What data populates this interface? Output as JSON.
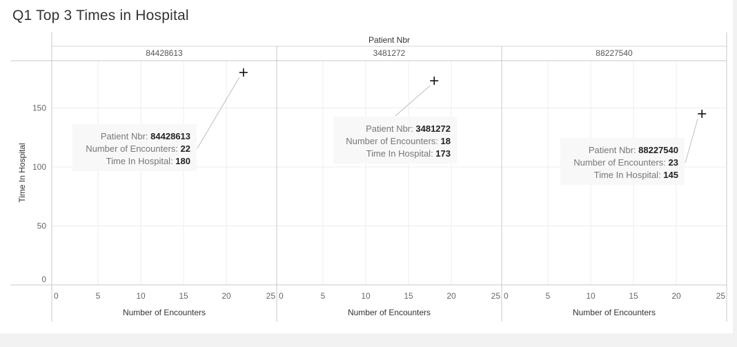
{
  "title": "Q1 Top 3 Times in Hospital",
  "chart_data": {
    "type": "scatter",
    "title": "Q1 Top 3 Times in Hospital",
    "column_header": "Patient Nbr",
    "xlabel": "Number of Encounters",
    "ylabel": "Time In Hospital",
    "xlim": [
      0,
      25
    ],
    "ylim": [
      0,
      190
    ],
    "x_ticks": [
      0,
      5,
      10,
      15,
      20,
      25
    ],
    "y_ticks": [
      0,
      50,
      100,
      150
    ],
    "grid": true,
    "marker": "plus",
    "panels": [
      {
        "patient": "84428613",
        "points": [
          {
            "x": 22,
            "y": 180
          }
        ],
        "tooltip": [
          {
            "label": "Patient Nbr:",
            "value": "84428613"
          },
          {
            "label": "Number of Encounters:",
            "value": "22"
          },
          {
            "label": "Time In Hospital:",
            "value": "180"
          }
        ]
      },
      {
        "patient": "3481272",
        "points": [
          {
            "x": 18,
            "y": 173
          }
        ],
        "tooltip": [
          {
            "label": "Patient Nbr:",
            "value": "3481272"
          },
          {
            "label": "Number of Encounters:",
            "value": "18"
          },
          {
            "label": "Time In Hospital:",
            "value": "173"
          }
        ]
      },
      {
        "patient": "88227540",
        "points": [
          {
            "x": 23,
            "y": 145
          }
        ],
        "tooltip": [
          {
            "label": "Patient Nbr:",
            "value": "88227540"
          },
          {
            "label": "Number of Encounters:",
            "value": "23"
          },
          {
            "label": "Time In Hospital:",
            "value": "145"
          }
        ]
      }
    ]
  }
}
